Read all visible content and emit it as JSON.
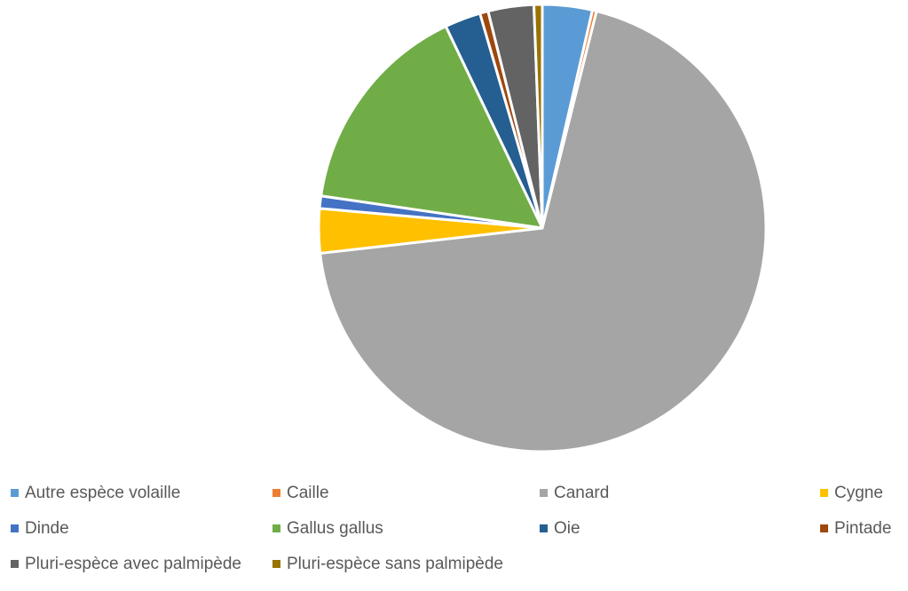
{
  "chart_data": {
    "type": "pie",
    "title": "",
    "legend_position": "bottom",
    "start_angle_deg": 0,
    "direction": "clockwise",
    "slices": [
      {
        "label": "Autre espèce volaille",
        "value": 3.6,
        "color": "#5B9BD5"
      },
      {
        "label": "Caille",
        "value": 0.3,
        "color": "#ED7D31"
      },
      {
        "label": "Canard",
        "value": 69.3,
        "color": "#A5A5A5"
      },
      {
        "label": "Cygne",
        "value": 3.2,
        "color": "#FFC000"
      },
      {
        "label": "Dinde",
        "value": 0.9,
        "color": "#4472C4"
      },
      {
        "label": "Gallus gallus",
        "value": 15.6,
        "color": "#70AD47"
      },
      {
        "label": "Oie",
        "value": 2.6,
        "color": "#255E91"
      },
      {
        "label": "Pintade",
        "value": 0.6,
        "color": "#9E480E"
      },
      {
        "label": "Pluri-espèce avec palmipède",
        "value": 3.3,
        "color": "#636363"
      },
      {
        "label": "Pluri-espèce sans palmipède",
        "value": 0.6,
        "color": "#997300"
      }
    ]
  }
}
